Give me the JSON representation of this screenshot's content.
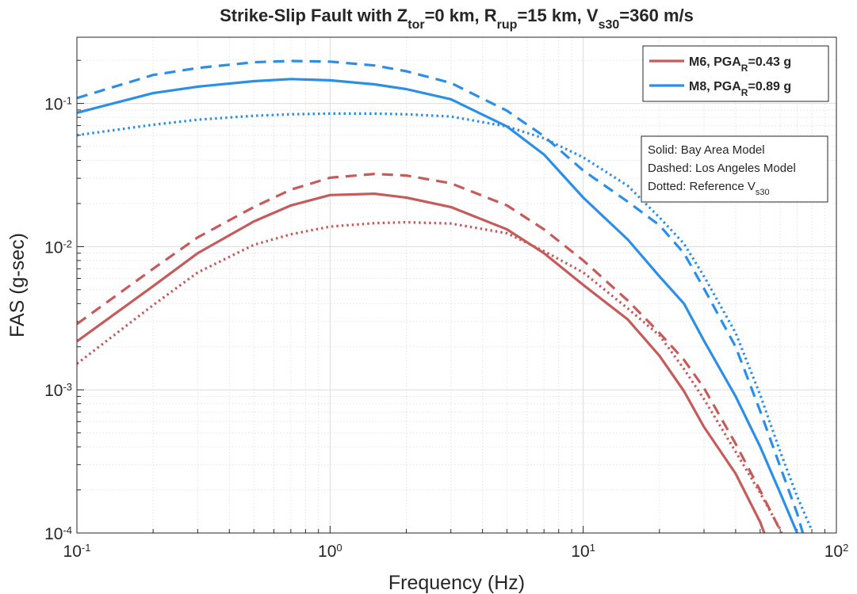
{
  "chart_data": {
    "type": "line",
    "title": [
      {
        "text": "Strike-Slip Fault with Z"
      },
      {
        "text": "tor",
        "sub": true
      },
      {
        "text": "=0 km, R"
      },
      {
        "text": "rup",
        "sub": true
      },
      {
        "text": "=15 km, V"
      },
      {
        "text": "s30",
        "sub": true
      },
      {
        "text": "=360 m/s"
      }
    ],
    "x_label": "Frequency (Hz)",
    "y_label": "FAS (g-sec)",
    "x_log": true,
    "y_log": true,
    "grid": true,
    "minor_grid": true,
    "legend_position": "upper right",
    "xlim": [
      0.1,
      100
    ],
    "ylim": [
      0.0001,
      0.29
    ],
    "xticks": [
      {
        "value": 0.1,
        "label": {
          "base": "10",
          "exp": "-1"
        }
      },
      {
        "value": 1,
        "label": {
          "base": "10",
          "exp": "0"
        }
      },
      {
        "value": 10,
        "label": {
          "base": "10",
          "exp": "1"
        }
      },
      {
        "value": 100,
        "label": {
          "base": "10",
          "exp": "2"
        }
      }
    ],
    "yticks": [
      {
        "value": 0.0001,
        "label": {
          "base": "10",
          "exp": "-4"
        }
      },
      {
        "value": 0.001,
        "label": {
          "base": "10",
          "exp": "-3"
        }
      },
      {
        "value": 0.01,
        "label": {
          "base": "10",
          "exp": "-2"
        }
      },
      {
        "value": 0.1,
        "label": {
          "base": "10",
          "exp": "-1"
        }
      }
    ],
    "x": [
      0.1,
      0.2,
      0.3,
      0.5,
      0.7,
      1,
      1.5,
      2,
      3,
      5,
      7,
      10,
      15,
      20,
      25,
      30,
      40,
      50,
      60,
      70,
      80
    ],
    "series": [
      {
        "name": [
          {
            "text": "M6, PGA"
          },
          {
            "text": "R",
            "sub": true
          },
          {
            "text": "=0.43 g"
          }
        ],
        "color": "#c65b5b",
        "curves": [
          {
            "style": "solid",
            "values": [
              0.00218,
              0.0053,
              0.009,
              0.015,
              0.0194,
              0.0229,
              0.0234,
              0.022,
              0.0189,
              0.0132,
              0.009,
              0.0054,
              0.0031,
              0.00173,
              0.00098,
              0.00055,
              0.00026,
              0.000119,
              5e-05,
              null,
              null
            ]
          },
          {
            "style": "dashed",
            "values": [
              0.00288,
              0.007,
              0.0116,
              0.0189,
              0.025,
              0.0303,
              0.0322,
              0.0314,
              0.0277,
              0.0194,
              0.0132,
              0.008,
              0.0042,
              0.0025,
              0.00162,
              0.00103,
              0.00042,
              0.000198,
              0.000104,
              5e-05,
              null
            ]
          },
          {
            "style": "dotted",
            "values": [
              0.00152,
              0.0039,
              0.0066,
              0.0103,
              0.0122,
              0.0138,
              0.0146,
              0.0148,
              0.0145,
              0.0124,
              0.0093,
              0.0066,
              0.0037,
              0.0024,
              0.0014,
              0.00086,
              0.00037,
              0.00019,
              0.000106,
              5e-05,
              null
            ]
          }
        ]
      },
      {
        "name": [
          {
            "text": "M8, PGA"
          },
          {
            "text": "R",
            "sub": true
          },
          {
            "text": "=0.89 g"
          }
        ],
        "color": "#2b8fe8",
        "curves": [
          {
            "style": "solid",
            "values": [
              0.086,
              0.118,
              0.131,
              0.143,
              0.148,
              0.145,
              0.136,
              0.126,
              0.107,
              0.069,
              0.044,
              0.022,
              0.0112,
              0.0062,
              0.004,
              0.0022,
              0.0009,
              0.0004,
              0.00019,
              0.0001,
              5e-05
            ]
          },
          {
            "style": "dashed",
            "values": [
              0.109,
              0.158,
              0.177,
              0.194,
              0.198,
              0.196,
              0.184,
              0.168,
              0.139,
              0.089,
              0.059,
              0.034,
              0.0206,
              0.0141,
              0.009,
              0.0051,
              0.002,
              0.00071,
              0.00029,
              0.000137,
              6e-05
            ]
          },
          {
            "style": "dotted",
            "values": [
              0.06,
              0.071,
              0.077,
              0.082,
              0.084,
              0.085,
              0.085,
              0.084,
              0.081,
              0.069,
              0.057,
              0.042,
              0.0266,
              0.016,
              0.0105,
              0.0062,
              0.0025,
              0.00092,
              0.00037,
              0.00018,
              0.000104
            ]
          }
        ]
      }
    ],
    "annotation": [
      [
        {
          "text": "Solid: Bay Area Model"
        }
      ],
      [
        {
          "text": "Dashed: Los Angeles Model"
        }
      ],
      [
        {
          "text": "Dotted: Reference V"
        },
        {
          "text": "s30",
          "sub": true
        }
      ]
    ]
  }
}
